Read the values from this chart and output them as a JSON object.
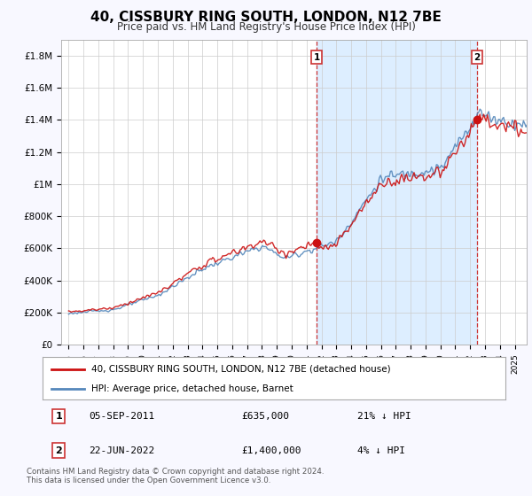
{
  "title": "40, CISSBURY RING SOUTH, LONDON, N12 7BE",
  "subtitle": "Price paid vs. HM Land Registry's House Price Index (HPI)",
  "ylim": [
    0,
    1900000
  ],
  "yticks": [
    0,
    200000,
    400000,
    600000,
    800000,
    1000000,
    1200000,
    1400000,
    1600000,
    1800000
  ],
  "ytick_labels": [
    "£0",
    "£200K",
    "£400K",
    "£600K",
    "£800K",
    "£1M",
    "£1.2M",
    "£1.4M",
    "£1.6M",
    "£1.8M"
  ],
  "xtick_years": [
    1995,
    1996,
    1997,
    1998,
    1999,
    2000,
    2001,
    2002,
    2003,
    2004,
    2005,
    2006,
    2007,
    2008,
    2009,
    2010,
    2011,
    2012,
    2013,
    2014,
    2015,
    2016,
    2017,
    2018,
    2019,
    2020,
    2021,
    2022,
    2023,
    2024,
    2025
  ],
  "hpi_color": "#5588bb",
  "price_color": "#cc1111",
  "vline_color": "#cc3333",
  "shade_color": "#ddeeff",
  "point1_year": 2011.67,
  "point1_price": 635000,
  "point2_year": 2022.47,
  "point2_price": 1400000,
  "legend_label_red": "40, CISSBURY RING SOUTH, LONDON, N12 7BE (detached house)",
  "legend_label_blue": "HPI: Average price, detached house, Barnet",
  "annotation1_num": "1",
  "annotation1_date": "05-SEP-2011",
  "annotation1_price": "£635,000",
  "annotation1_hpi": "21% ↓ HPI",
  "annotation2_num": "2",
  "annotation2_date": "22-JUN-2022",
  "annotation2_price": "£1,400,000",
  "annotation2_hpi": "4% ↓ HPI",
  "footer": "Contains HM Land Registry data © Crown copyright and database right 2024.\nThis data is licensed under the Open Government Licence v3.0.",
  "background_color": "#f8f8ff",
  "plot_bg_color": "#ffffff"
}
